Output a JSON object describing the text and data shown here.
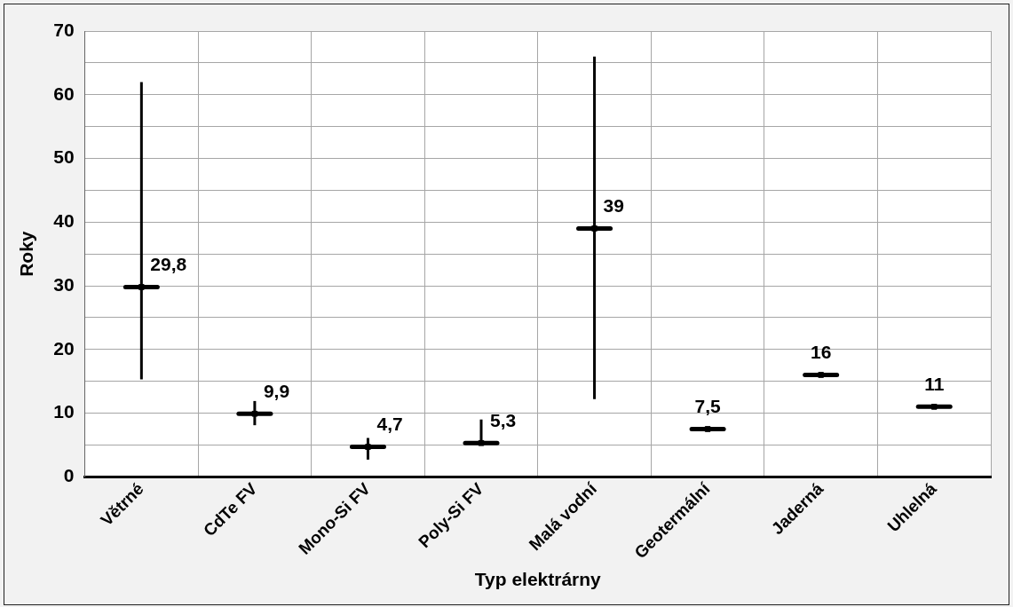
{
  "chart_data": {
    "type": "scatter",
    "xlabel": "Typ elektrárny",
    "ylabel": "Roky",
    "categories": [
      "Větrné",
      "CdTe FV",
      "Mono-Si FV",
      "Poly-Si FV",
      "Malá vodní",
      "Geotermální",
      "Jaderná",
      "Uhlelná"
    ],
    "series": [
      {
        "color": "#000000",
        "values": [
          29.8,
          9.9,
          4.7,
          5.3,
          39,
          7.5,
          16,
          11
        ],
        "errors": [
          [
            15.3,
            62
          ],
          [
            8.1,
            11.9
          ],
          [
            2.7,
            6.1
          ],
          [
            5.3,
            9
          ],
          [
            12.2,
            66
          ],
          null,
          null,
          null
        ],
        "value_labels": [
          "29,8",
          "9,9",
          "4,7",
          "5,3",
          "39",
          "7,5",
          "16",
          "11"
        ]
      }
    ],
    "ylim": [
      0,
      70
    ],
    "yticks": [
      0,
      {
        "value": 5,
        "label": null
      },
      10,
      {
        "value": 15,
        "label": null
      },
      20,
      {
        "value": 25,
        "label": null
      },
      30,
      {
        "value": 35,
        "label": null
      },
      40,
      {
        "value": 45,
        "label": null
      },
      50,
      {
        "value": 55,
        "label": null
      },
      60,
      {
        "value": 65,
        "label": null
      },
      70
    ],
    "grid": true,
    "legend": false,
    "marker": "square"
  }
}
